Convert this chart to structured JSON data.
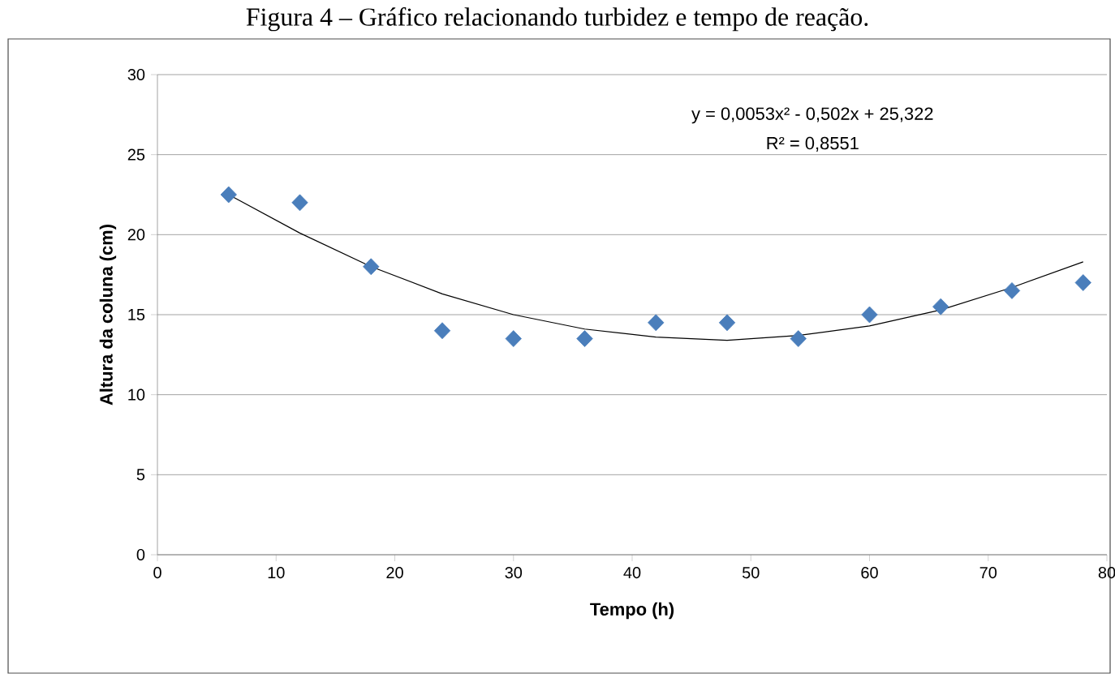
{
  "chart_data": {
    "type": "scatter",
    "title": "Figura 4 – Gráfico relacionando turbidez e tempo de reação.",
    "xlabel": "Tempo (h)",
    "ylabel": "Altura da coluna (cm)",
    "x": [
      6,
      12,
      18,
      24,
      30,
      36,
      42,
      48,
      54,
      60,
      66,
      72,
      78
    ],
    "series": [
      {
        "color": "#4a7ebb",
        "marker": "diamond",
        "values": [
          22.5,
          22,
          18,
          14,
          13.5,
          13.5,
          14.5,
          14.5,
          13.5,
          15,
          15.5,
          16.5,
          17
        ]
      },
      {
        "type": "line",
        "color": "#000000",
        "marker": "none",
        "x": [
          6,
          12,
          18,
          24,
          30,
          36,
          42,
          48,
          54,
          60,
          66,
          72,
          78
        ],
        "values": [
          22.5,
          20.1,
          18,
          16.3,
          15,
          14.1,
          13.6,
          13.4,
          13.7,
          14.3,
          15.3,
          16.7,
          18.3
        ]
      }
    ],
    "annotations": [
      "y = 0,0053x² - 0,502x + 25,322",
      "R² = 0,8551"
    ],
    "xlim": [
      0,
      80
    ],
    "xticks": [
      0,
      10,
      20,
      30,
      40,
      50,
      60,
      70,
      80
    ],
    "ylim": [
      0,
      30
    ],
    "yticks": [
      0,
      5,
      10,
      15,
      20,
      25,
      30
    ],
    "grid": "y"
  }
}
